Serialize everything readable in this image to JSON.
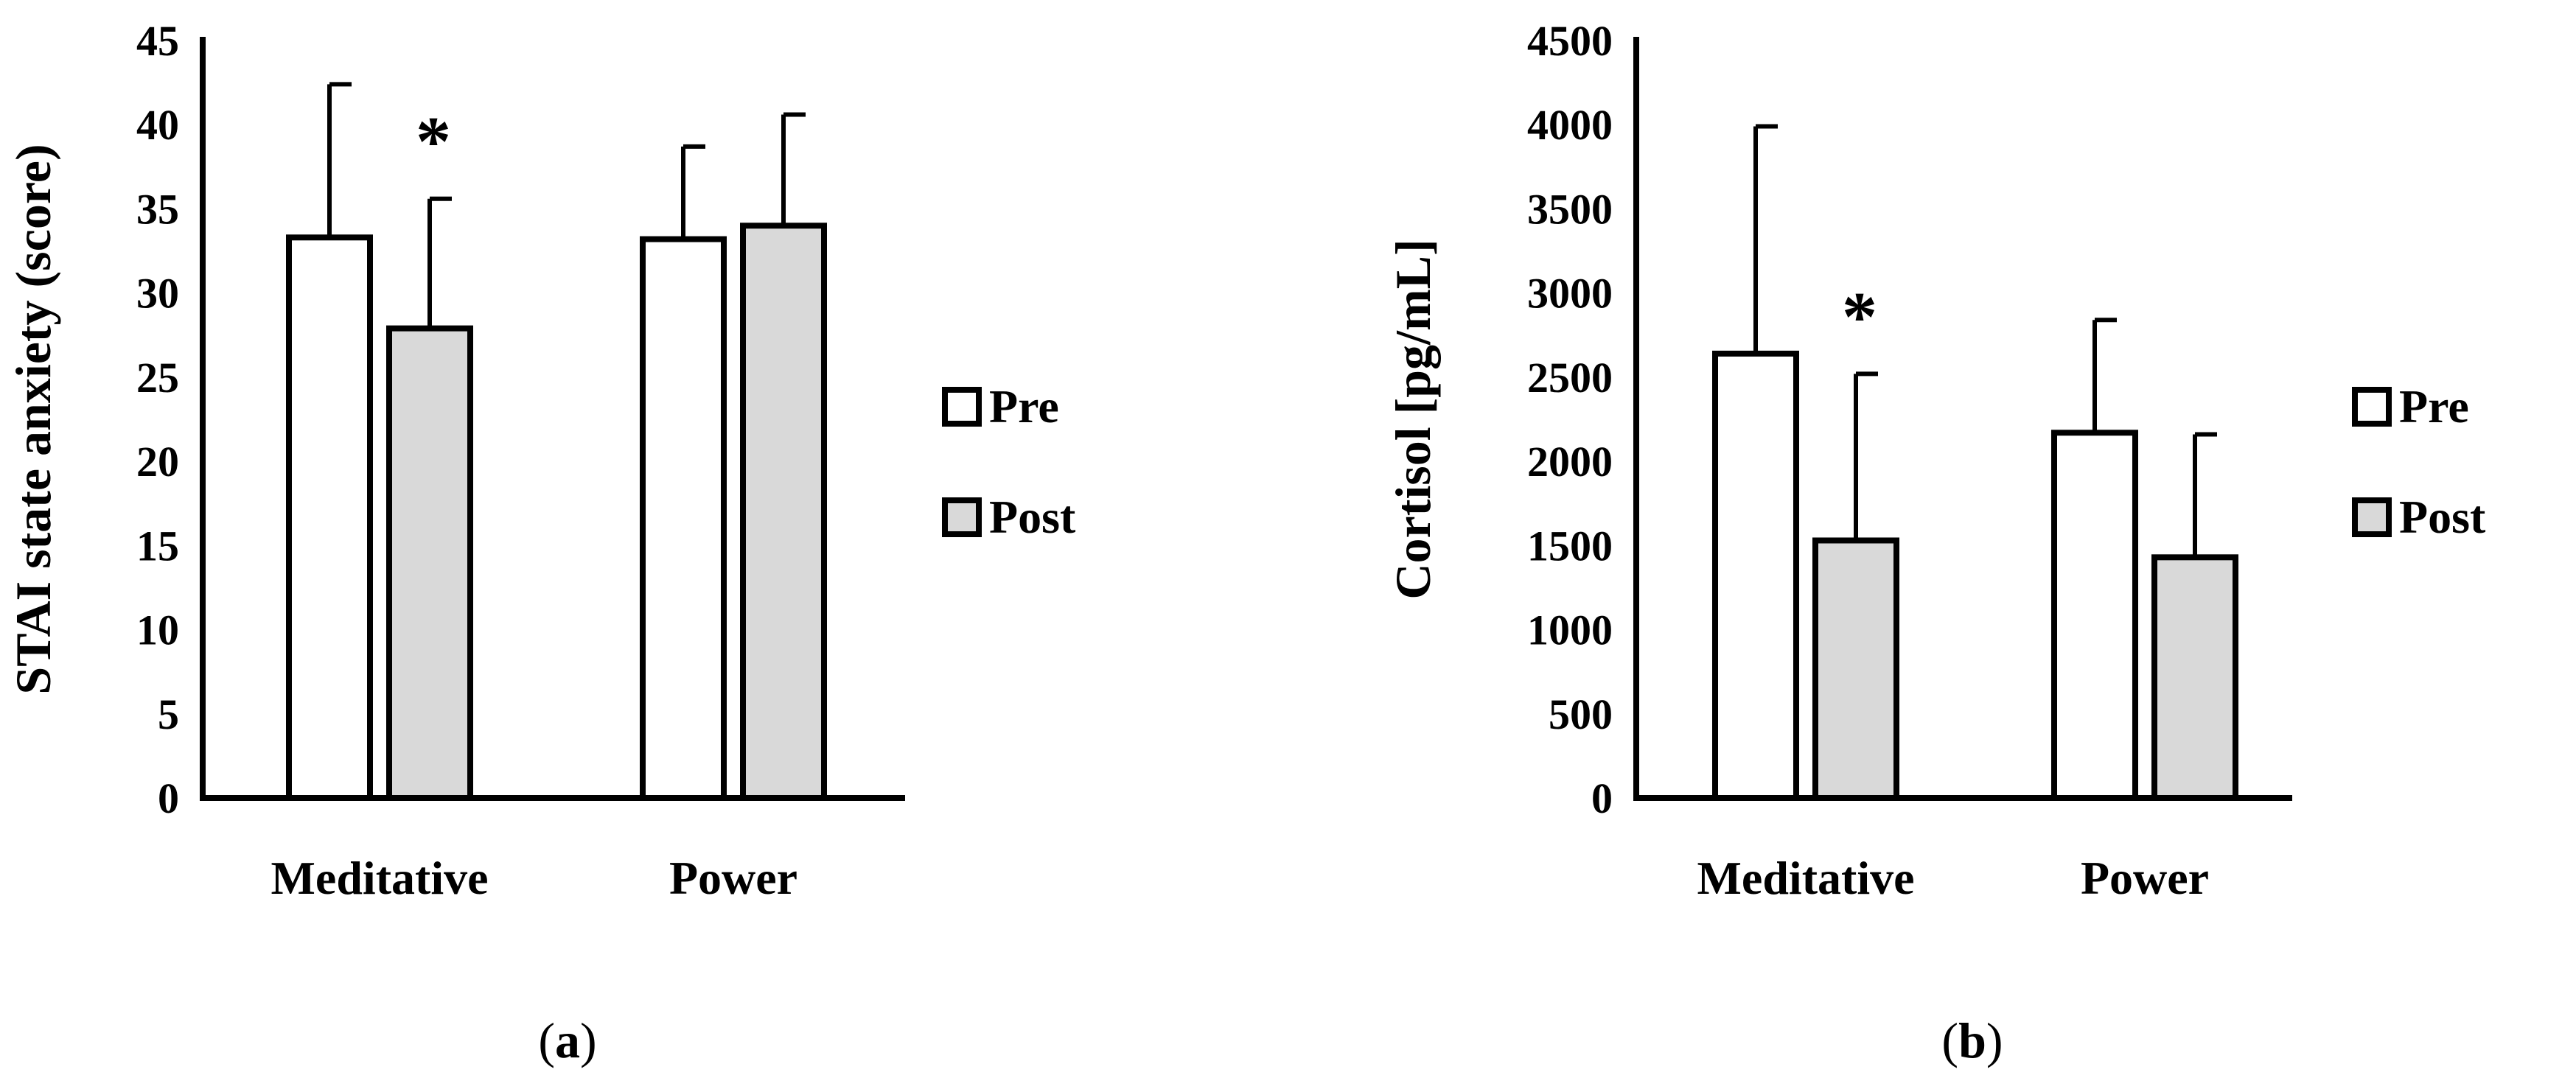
{
  "colors": {
    "pre": "#ffffff",
    "post": "#d9d9d9",
    "stroke": "#000000"
  },
  "chart_data": [
    {
      "type": "bar",
      "panel_label": "a",
      "ylabel": "STAI state anxiety (score)",
      "categories": [
        "Meditative",
        "Power"
      ],
      "ylim": [
        0,
        45
      ],
      "yticks": [
        0,
        5,
        10,
        15,
        20,
        25,
        30,
        35,
        40,
        45
      ],
      "series": [
        {
          "name": "Pre",
          "values": [
            33.3,
            33.2
          ],
          "errors": [
            9.1,
            5.5
          ]
        },
        {
          "name": "Post",
          "values": [
            27.9,
            34.0
          ],
          "errors": [
            7.7,
            6.6
          ]
        }
      ],
      "annotations": [
        {
          "text": "*",
          "category": 0,
          "series": 1
        }
      ],
      "legend": {
        "position": "right",
        "entries": [
          "Pre",
          "Post"
        ]
      },
      "grid": false
    },
    {
      "type": "bar",
      "panel_label": "b",
      "ylabel": "Cortisol [pg/mL]",
      "categories": [
        "Meditative",
        "Power"
      ],
      "ylim": [
        0,
        4500
      ],
      "yticks": [
        0,
        500,
        1000,
        1500,
        2000,
        2500,
        3000,
        3500,
        4000,
        4500
      ],
      "series": [
        {
          "name": "Pre",
          "values": [
            2640,
            2170
          ],
          "errors": [
            1350,
            670
          ]
        },
        {
          "name": "Post",
          "values": [
            1530,
            1430
          ],
          "errors": [
            990,
            730
          ]
        }
      ],
      "annotations": [
        {
          "text": "*",
          "category": 0,
          "series": 1
        }
      ],
      "legend": {
        "position": "right",
        "entries": [
          "Pre",
          "Post"
        ]
      },
      "grid": false
    }
  ]
}
